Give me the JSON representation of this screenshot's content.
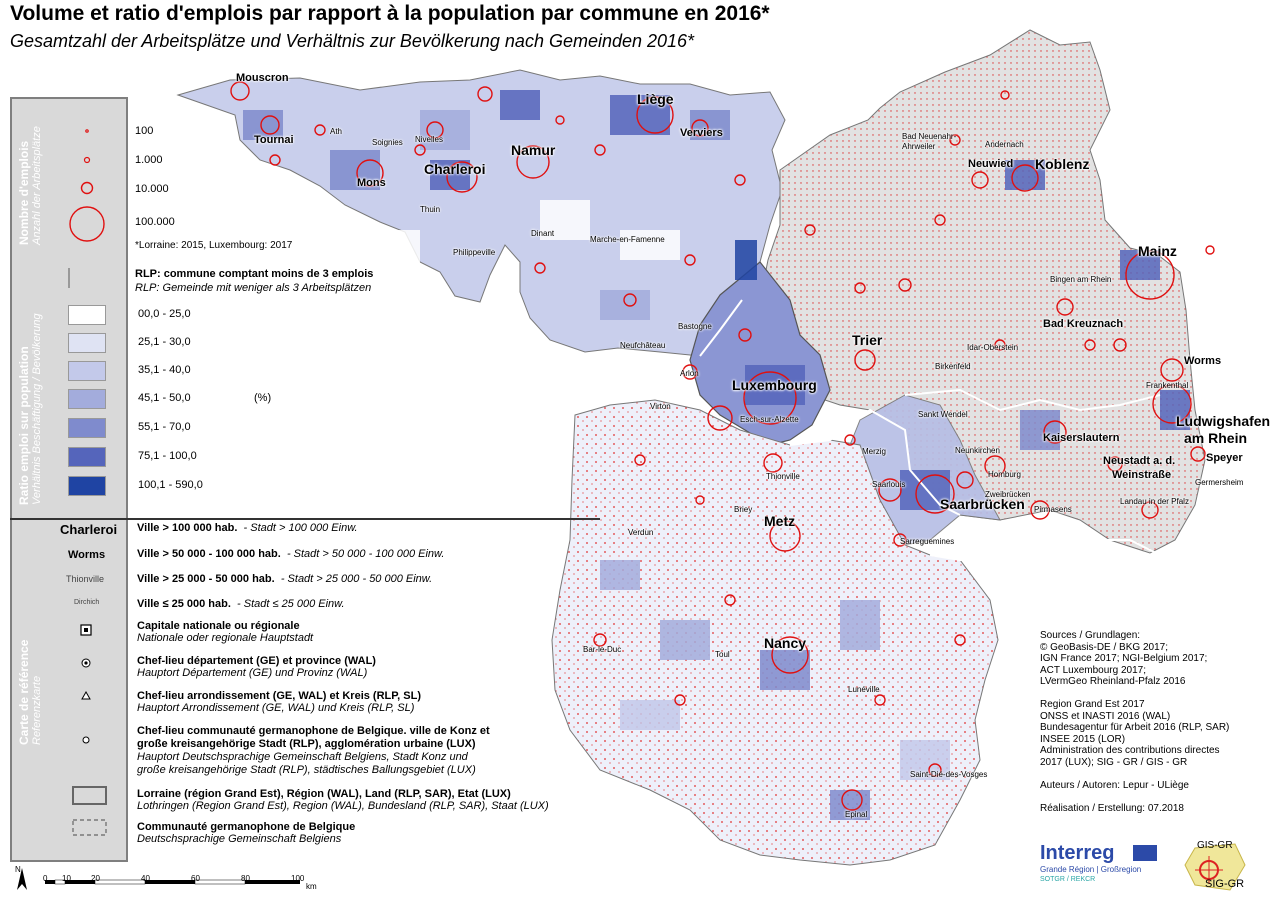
{
  "title": {
    "fr": "Volume et ratio d'emplois par rapport à la population par commune en 2016*",
    "de": "Gesamtzahl der Arbeitsplätze und Verhältnis zur Bevölkerung nach Gemeinden 2016*"
  },
  "legend": {
    "employment": {
      "side_title_fr": "Nombre d'emplois",
      "side_title_de": "Anzahl der Arbeitsplätze",
      "sizes": [
        "100",
        "1.000",
        "10.000",
        "100.000"
      ],
      "note": "*Lorraine: 2015, Luxembourg: 2017"
    },
    "ratio": {
      "side_title_fr": "Ratio emploi sur population",
      "side_title_de": "Verhältnis Beschäftigung / Bevölkerung",
      "rlp_fr": "RLP: commune comptant moins de 3 emplois",
      "rlp_de": "RLP: Gemeinde mit weniger als 3 Arbeitsplätzen",
      "unit": "(%)",
      "classes": [
        {
          "label": "00,0 - 25,0",
          "color": "#ffffff"
        },
        {
          "label": "25,1 - 30,0",
          "color": "#dfe3f3"
        },
        {
          "label": "35,1 - 40,0",
          "color": "#c3c9ea"
        },
        {
          "label": "45,1 - 50,0",
          "color": "#a3acdc"
        },
        {
          "label": "55,1 - 70,0",
          "color": "#7f8bcd"
        },
        {
          "label": "75,1 - 100,0",
          "color": "#5565bb"
        },
        {
          "label": "100,1 - 590,0",
          "color": "#1f44a3"
        }
      ]
    },
    "reference": {
      "side_title_fr": "Carte de référence",
      "side_title_de": "Referenzkarte",
      "samples": [
        "Charleroi",
        "Worms",
        "Thionville",
        "Dirchich"
      ],
      "city_classes": [
        {
          "fr": "Ville > 100 000 hab.",
          "de": "- Stadt > 100 000 Einw."
        },
        {
          "fr": "Ville > 50 000 - 100 000 hab.",
          "de": "- Stadt > 50 000 - 100 000 Einw."
        },
        {
          "fr": "Ville > 25 000 - 50 000  hab.",
          "de": "- Stadt > 25 000 - 50 000 Einw."
        },
        {
          "fr": "Ville ≤ 25 000  hab.",
          "de": "- Stadt ≤ 25 000 Einw."
        }
      ],
      "symbols": [
        {
          "fr": "Capitale nationale ou régionale",
          "de": "Nationale oder regionale Hauptstadt"
        },
        {
          "fr": "Chef-lieu département (GE) et province (WAL)",
          "de": "Hauptort Département (GE) und Provinz (WAL)"
        },
        {
          "fr": "Chef-lieu arrondissement (GE, WAL) et Kreis (RLP, SL)",
          "de": "Hauptort Arrondissement (GE, WAL) und Kreis (RLP, SL)"
        },
        {
          "fr": "Chef-lieu communauté germanophone de Belgique. ville de Konz et",
          "fr2": "große kreisangehörige Stadt (RLP), agglomération urbaine (LUX)",
          "de": "Hauptort Deutschsprachige Gemeinschaft Belgiens, Stadt Konz und",
          "de2": "große kreisangehörige Stadt (RLP), städtisches Ballungsgebiet (LUX)"
        },
        {
          "fr": "Lorraine (région Grand Est), Région (WAL), Land (RLP, SAR), Etat (LUX)",
          "de": "Lothringen (Region Grand Est), Region (WAL), Bundesland (RLP, SAR), Staat (LUX)"
        },
        {
          "fr": "Communauté germanophone de Belgique",
          "de": "Deutschsprachige Gemeinschaft Belgiens"
        }
      ]
    }
  },
  "scale": {
    "ticks": [
      "0",
      "10",
      "20",
      "40",
      "60",
      "80",
      "100"
    ],
    "unit": "km"
  },
  "sources": "Sources / Grundlagen:\n© GeoBasis-DE / BKG 2017;\nIGN France 2017; NGI-Belgium 2017;\nACT Luxembourg 2017;\nLVermGeo Rheinland-Pfalz 2016\n\nRegion Grand Est 2017\nONSS et INASTI 2016 (WAL)\nBundesagentur für Arbeit 2016 (RLP, SAR)\nINSEE 2015 (LOR)\nAdministration des contributions directes\n2017 (LUX); SIG - GR / GIS - GR\n\nAuteurs / Autoren: Lepur - ULiège\n\nRéalisation / Erstellung: 07.2018",
  "logos": {
    "interreg": "Interreg",
    "interreg_sub": "Grande Région | Großregion",
    "interreg_sub2": "SOTGR / REKCR",
    "gis": "GIS-GR",
    "sig": "SIG-GR"
  },
  "cities": [
    {
      "name": "Mouscron",
      "cls": "c2"
    },
    {
      "name": "Tournai",
      "cls": "c2"
    },
    {
      "name": "Mons",
      "cls": "c2"
    },
    {
      "name": "Charleroi",
      "cls": "c1"
    },
    {
      "name": "Namur",
      "cls": "c1"
    },
    {
      "name": "Liège",
      "cls": "c1"
    },
    {
      "name": "Verviers",
      "cls": "c2"
    },
    {
      "name": "Koblenz",
      "cls": "c1"
    },
    {
      "name": "Neuwied",
      "cls": "c2"
    },
    {
      "name": "Mainz",
      "cls": "c1"
    },
    {
      "name": "Bad Kreuznach",
      "cls": "c2"
    },
    {
      "name": "Trier",
      "cls": "c1"
    },
    {
      "name": "Worms",
      "cls": "c2"
    },
    {
      "name": "Luxembourg",
      "cls": "c1"
    },
    {
      "name": "Ludwigshafen",
      "cls": "c1"
    },
    {
      "name": "am Rhein",
      "cls": "c1"
    },
    {
      "name": "Kaiserslautern",
      "cls": "c2"
    },
    {
      "name": "Speyer",
      "cls": "c2"
    },
    {
      "name": "Saarbrücken",
      "cls": "c1"
    },
    {
      "name": "Neustadt a. d.",
      "cls": "c2"
    },
    {
      "name": "Weinstraße",
      "cls": "c2"
    },
    {
      "name": "Metz",
      "cls": "c1"
    },
    {
      "name": "Nancy",
      "cls": "c1"
    },
    {
      "name": "Epinal",
      "cls": "c3"
    },
    {
      "name": "Arlon",
      "cls": "c3"
    },
    {
      "name": "Sankt Wendel",
      "cls": "c3"
    },
    {
      "name": "Neunkirchen",
      "cls": "c3"
    },
    {
      "name": "Pirmasens",
      "cls": "c3"
    },
    {
      "name": "Frankenthal",
      "cls": "c3"
    },
    {
      "name": "Idar-Oberstein",
      "cls": "c3"
    },
    {
      "name": "Bastogne",
      "cls": "c3"
    },
    {
      "name": "Dinant",
      "cls": "c3"
    },
    {
      "name": "Ath",
      "cls": "c3"
    },
    {
      "name": "Soignies",
      "cls": "c3"
    },
    {
      "name": "Nivelles",
      "cls": "c3"
    },
    {
      "name": "Thuin",
      "cls": "c3"
    },
    {
      "name": "Philippeville",
      "cls": "c3"
    },
    {
      "name": "Marche-en-Famenne",
      "cls": "c3"
    },
    {
      "name": "Bad Neuenahr-",
      "cls": "c3"
    },
    {
      "name": "Ahrweiler",
      "cls": "c3"
    },
    {
      "name": "Andernach",
      "cls": "c3"
    },
    {
      "name": "Merzig",
      "cls": "c3"
    },
    {
      "name": "Saarlouis",
      "cls": "c3"
    },
    {
      "name": "Homburg",
      "cls": "c3"
    },
    {
      "name": "Zweibrücken",
      "cls": "c3"
    },
    {
      "name": "Landau in der Pfalz",
      "cls": "c3"
    },
    {
      "name": "Germersheim",
      "cls": "c3"
    },
    {
      "name": "Birkenfeld",
      "cls": "c3"
    },
    {
      "name": "Neufchâteau",
      "cls": "c3"
    },
    {
      "name": "Virton",
      "cls": "c3"
    },
    {
      "name": "Esch-sur-Alzette",
      "cls": "c3"
    },
    {
      "name": "Thionville",
      "cls": "c3"
    },
    {
      "name": "Briey",
      "cls": "c3"
    },
    {
      "name": "Sarreguemines",
      "cls": "c3"
    },
    {
      "name": "Saint-Dié-des-Vosges",
      "cls": "c3"
    },
    {
      "name": "Lunéville",
      "cls": "c3"
    },
    {
      "name": "Toul",
      "cls": "c3"
    },
    {
      "name": "Bar-le-Duc",
      "cls": "c3"
    },
    {
      "name": "Verdun",
      "cls": "c3"
    },
    {
      "name": "Bingen am Rhein",
      "cls": "c3"
    }
  ]
}
